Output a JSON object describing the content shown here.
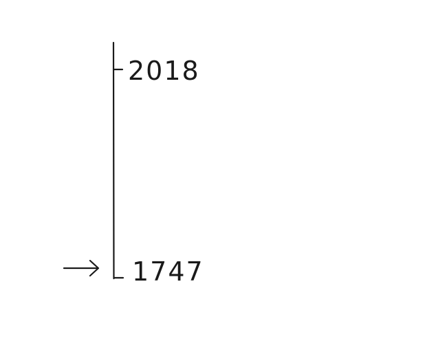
{
  "timeline": {
    "labels": {
      "top": "2018",
      "bottom": "1747"
    },
    "marker": {
      "icon": "right-arrow-icon",
      "points_to": "bottom"
    },
    "ink_color": "#1a1a1a"
  }
}
